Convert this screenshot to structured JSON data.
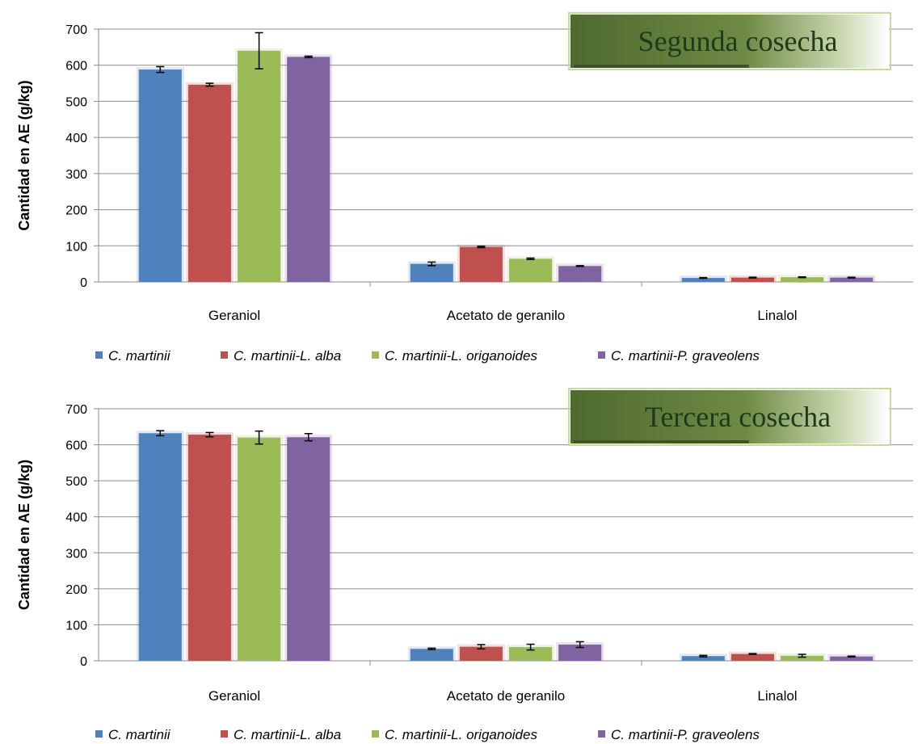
{
  "chart_data": [
    {
      "type": "bar",
      "title": "Segunda cosecha",
      "ylabel": "Cantidad en AE (g/kg)",
      "ylim": [
        0,
        700
      ],
      "yticks": [
        0,
        100,
        200,
        300,
        400,
        500,
        600,
        700
      ],
      "grid": true,
      "legend_position": "bottom",
      "categories": [
        "Geraniol",
        "Acetato de geranilo",
        "Linalol"
      ],
      "series": [
        {
          "name": "C. martinii",
          "color": "#4F81BD",
          "values": [
            588,
            50,
            11
          ],
          "errors": [
            8,
            5,
            1
          ]
        },
        {
          "name": "C. martinii-L. alba",
          "color": "#C0504D",
          "values": [
            546,
            97,
            12
          ],
          "errors": [
            4,
            2,
            1
          ]
        },
        {
          "name": "C. martinii-L. origanoides",
          "color": "#9BBB59",
          "values": [
            640,
            64,
            13
          ],
          "errors": [
            50,
            2,
            1
          ]
        },
        {
          "name": "C. martinii-P. graveolens",
          "color": "#8064A2",
          "values": [
            623,
            44,
            12
          ],
          "errors": [
            2,
            1,
            1
          ]
        }
      ]
    },
    {
      "type": "bar",
      "title": "Tercera cosecha",
      "ylabel": "Cantidad en AE (g/kg)",
      "ylim": [
        0,
        700
      ],
      "yticks": [
        0,
        100,
        200,
        300,
        400,
        500,
        600,
        700
      ],
      "grid": true,
      "legend_position": "bottom",
      "categories": [
        "Geraniol",
        "Acetato de geranilo",
        "Linalol"
      ],
      "series": [
        {
          "name": "C. martinii",
          "color": "#4F81BD",
          "values": [
            632,
            33,
            13
          ],
          "errors": [
            7,
            2,
            2
          ]
        },
        {
          "name": "C. martinii-L. alba",
          "color": "#C0504D",
          "values": [
            628,
            39,
            19
          ],
          "errors": [
            6,
            6,
            1
          ]
        },
        {
          "name": "C. martinii-L. origanoides",
          "color": "#9BBB59",
          "values": [
            620,
            38,
            14
          ],
          "errors": [
            18,
            8,
            4
          ]
        },
        {
          "name": "C. martinii-P. graveolens",
          "color": "#8064A2",
          "values": [
            621,
            45,
            12
          ],
          "errors": [
            10,
            8,
            1
          ]
        }
      ]
    }
  ]
}
